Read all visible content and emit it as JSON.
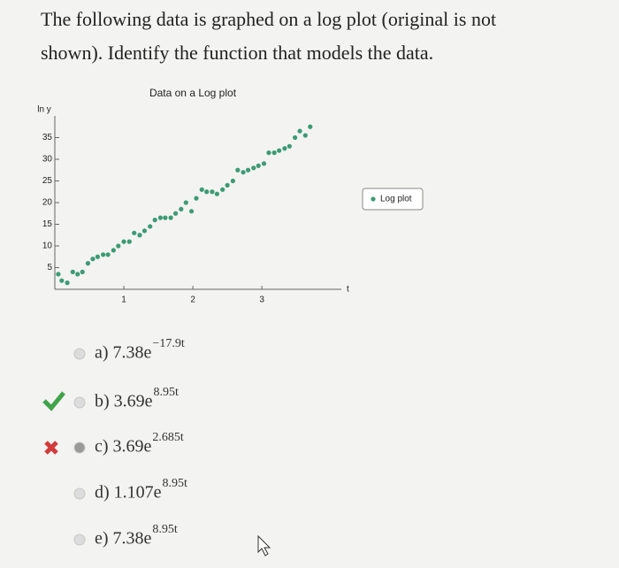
{
  "question": {
    "line1": "The following data is graphed on a log plot (original is not",
    "line2": "shown). Identify the function that models the data."
  },
  "chart_data": {
    "type": "scatter",
    "title": "Data on a Log plot",
    "y_label": "ln y",
    "x_label": "t",
    "xlim": [
      0,
      4.1
    ],
    "ylim": [
      0,
      40
    ],
    "xticks": [
      1,
      2,
      3
    ],
    "yticks": [
      5,
      10,
      15,
      20,
      25,
      30,
      35
    ],
    "legend": "right",
    "series": [
      {
        "name": "Log plot",
        "color": "#3b9b74",
        "x": [
          0.05,
          0.1,
          0.18,
          0.26,
          0.33,
          0.4,
          0.48,
          0.55,
          0.62,
          0.7,
          0.77,
          0.85,
          0.92,
          1.0,
          1.08,
          1.15,
          1.23,
          1.3,
          1.38,
          1.45,
          1.53,
          1.6,
          1.68,
          1.75,
          1.83,
          1.9,
          1.98,
          2.05,
          2.13,
          2.2,
          2.28,
          2.35,
          2.43,
          2.5,
          2.58,
          2.65,
          2.73,
          2.8,
          2.88,
          2.95,
          3.03,
          3.1,
          3.18,
          3.25,
          3.33,
          3.4,
          3.48,
          3.55,
          3.63,
          3.7
        ],
        "values": [
          3.5,
          2,
          1.5,
          4,
          3.5,
          4,
          6,
          7,
          7.5,
          8,
          8,
          9,
          10,
          11,
          11,
          13,
          12.5,
          13.5,
          14.5,
          16,
          16.5,
          16.5,
          16.5,
          17.5,
          18.5,
          20,
          18,
          21,
          23,
          22.5,
          22.5,
          22,
          23,
          24,
          25,
          27.5,
          27,
          27.5,
          28,
          28.5,
          29,
          31.5,
          31.5,
          32,
          32.5,
          33,
          35,
          36.5,
          35.5,
          37.5
        ]
      }
    ]
  },
  "options": [
    {
      "label": "a) 7.38e",
      "exponent": "−17.9t"
    },
    {
      "label": "b) 3.69e",
      "exponent": "8.95t"
    },
    {
      "label": "c) 3.69e",
      "exponent": "2.685t"
    },
    {
      "label": "d) 1.107e",
      "exponent": "8.95t"
    },
    {
      "label": "e) 7.38e",
      "exponent": "8.95t"
    }
  ]
}
